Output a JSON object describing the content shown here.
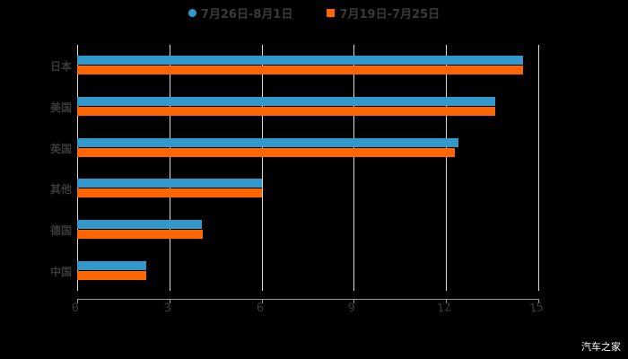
{
  "chart_data": {
    "type": "bar",
    "orientation": "horizontal",
    "title": "",
    "xlabel": "",
    "ylabel": "",
    "xlim": [
      0,
      15
    ],
    "x_ticks": [
      "0",
      "3",
      "6",
      "9",
      "12",
      "15"
    ],
    "grid": true,
    "legend_position": "top",
    "categories": [
      "日本",
      "美国",
      "英国",
      "其他",
      "德国",
      "中国"
    ],
    "series": [
      {
        "name": "7月26日-8月1日",
        "color": "#3399CC",
        "marker": "circle",
        "values": [
          14.5,
          13.6,
          12.4,
          6.0,
          4.05,
          2.25
        ]
      },
      {
        "name": "7月19日-7月25日",
        "color": "#FF6600",
        "marker": "square",
        "values": [
          14.5,
          13.6,
          12.3,
          6.0,
          4.1,
          2.25
        ]
      }
    ]
  },
  "watermark": "汽车之家"
}
